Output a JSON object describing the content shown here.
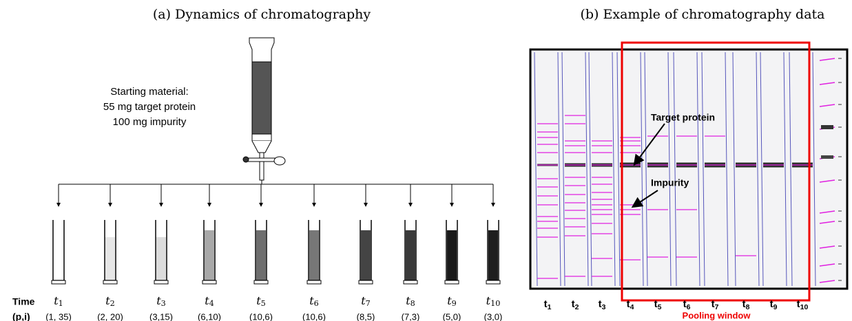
{
  "panel_a": {
    "title": "(a) Dynamics of chromatography",
    "starting_material": [
      "Starting material:",
      "55 mg target protein",
      "100 mg impurity"
    ],
    "row_labels": {
      "time": "Time",
      "pi": "(p,i)"
    },
    "time_symbol": "t",
    "fractions": [
      {
        "index": "1",
        "pi": "(1, 35)"
      },
      {
        "index": "2",
        "pi": "(2, 20)"
      },
      {
        "index": "3",
        "pi": "(3,15)"
      },
      {
        "index": "4",
        "pi": "(6,10)"
      },
      {
        "index": "5",
        "pi": "(10,6)"
      },
      {
        "index": "6",
        "pi": "(10,6)"
      },
      {
        "index": "7",
        "pi": "(8,5)"
      },
      {
        "index": "8",
        "pi": "(7,3)"
      },
      {
        "index": "9",
        "pi": "(5,0)"
      },
      {
        "index": "10",
        "pi": "(3,0)"
      }
    ]
  },
  "panel_b": {
    "title": "(b) Example of chromatography data",
    "lane_symbol": "t",
    "lanes": [
      "1",
      "2",
      "3",
      "4",
      "5",
      "6",
      "7",
      "8",
      "9",
      "10"
    ],
    "annotations": {
      "target": "Target protein",
      "impurity": "Impurity"
    },
    "pooling_window": "Pooling window"
  }
}
